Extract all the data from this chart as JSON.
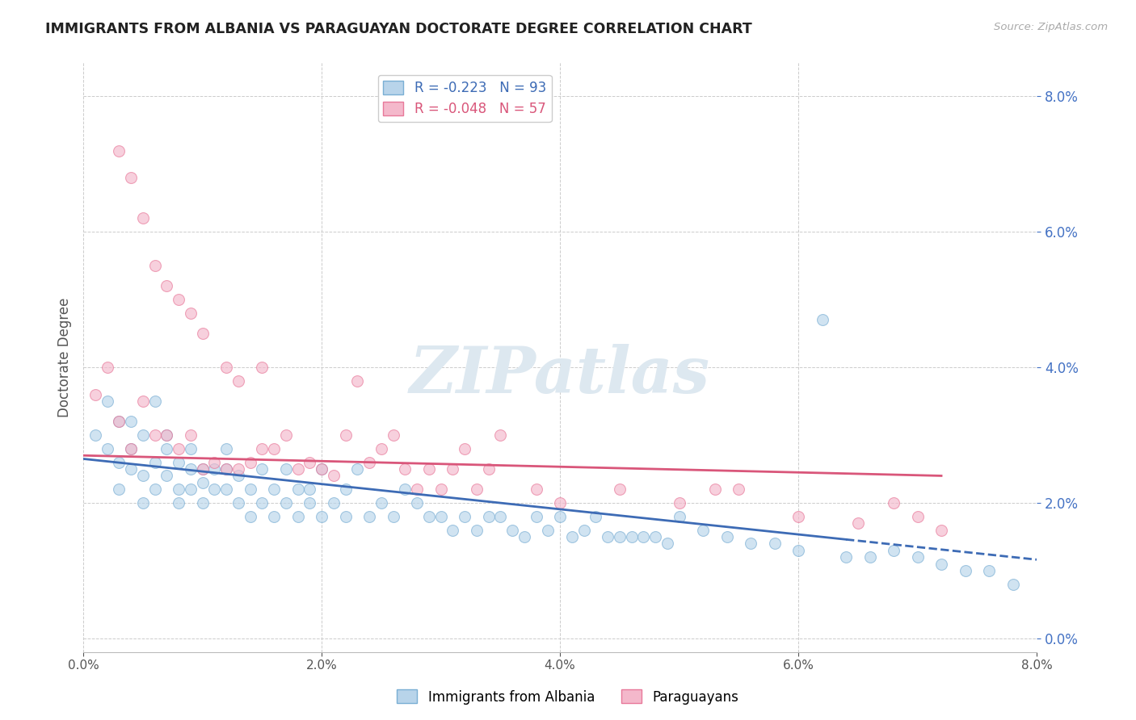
{
  "title": "IMMIGRANTS FROM ALBANIA VS PARAGUAYAN DOCTORATE DEGREE CORRELATION CHART",
  "source": "Source: ZipAtlas.com",
  "ylabel": "Doctorate Degree",
  "xlim": [
    0.0,
    0.08
  ],
  "ylim": [
    -0.002,
    0.085
  ],
  "albania_color": "#b8d4ea",
  "albania_edge": "#7aafd4",
  "paraguay_color": "#f4b8cb",
  "paraguay_edge": "#e8799a",
  "trend_albania_color": "#3d6bb5",
  "trend_paraguay_color": "#d9567a",
  "marker_size": 100,
  "marker_alpha": 0.65,
  "background_color": "#ffffff",
  "grid_color": "#cccccc",
  "watermark": "ZIPatlas",
  "legend_line1": "R = -0.223   N = 93",
  "legend_line2": "R = -0.048   N = 57",
  "legend_color1": "#3d6bb5",
  "legend_color2": "#d9567a",
  "albania_x": [
    0.001,
    0.002,
    0.002,
    0.003,
    0.003,
    0.003,
    0.004,
    0.004,
    0.004,
    0.005,
    0.005,
    0.005,
    0.006,
    0.006,
    0.006,
    0.007,
    0.007,
    0.007,
    0.008,
    0.008,
    0.008,
    0.009,
    0.009,
    0.009,
    0.01,
    0.01,
    0.01,
    0.011,
    0.011,
    0.012,
    0.012,
    0.012,
    0.013,
    0.013,
    0.014,
    0.014,
    0.015,
    0.015,
    0.016,
    0.016,
    0.017,
    0.017,
    0.018,
    0.018,
    0.019,
    0.019,
    0.02,
    0.02,
    0.021,
    0.022,
    0.022,
    0.023,
    0.024,
    0.025,
    0.026,
    0.027,
    0.028,
    0.029,
    0.03,
    0.031,
    0.032,
    0.033,
    0.034,
    0.035,
    0.036,
    0.037,
    0.038,
    0.039,
    0.04,
    0.041,
    0.042,
    0.043,
    0.044,
    0.045,
    0.046,
    0.047,
    0.048,
    0.049,
    0.05,
    0.052,
    0.054,
    0.056,
    0.058,
    0.06,
    0.062,
    0.064,
    0.066,
    0.068,
    0.07,
    0.072,
    0.074,
    0.076,
    0.078
  ],
  "albania_y": [
    0.03,
    0.028,
    0.035,
    0.026,
    0.032,
    0.022,
    0.028,
    0.025,
    0.032,
    0.024,
    0.03,
    0.02,
    0.026,
    0.022,
    0.035,
    0.028,
    0.024,
    0.03,
    0.022,
    0.026,
    0.02,
    0.025,
    0.022,
    0.028,
    0.025,
    0.02,
    0.023,
    0.025,
    0.022,
    0.025,
    0.022,
    0.028,
    0.02,
    0.024,
    0.022,
    0.018,
    0.025,
    0.02,
    0.022,
    0.018,
    0.025,
    0.02,
    0.022,
    0.018,
    0.02,
    0.022,
    0.025,
    0.018,
    0.02,
    0.022,
    0.018,
    0.025,
    0.018,
    0.02,
    0.018,
    0.022,
    0.02,
    0.018,
    0.018,
    0.016,
    0.018,
    0.016,
    0.018,
    0.018,
    0.016,
    0.015,
    0.018,
    0.016,
    0.018,
    0.015,
    0.016,
    0.018,
    0.015,
    0.015,
    0.015,
    0.015,
    0.015,
    0.014,
    0.018,
    0.016,
    0.015,
    0.014,
    0.014,
    0.013,
    0.047,
    0.012,
    0.012,
    0.013,
    0.012,
    0.011,
    0.01,
    0.01,
    0.008
  ],
  "paraguay_x": [
    0.001,
    0.002,
    0.003,
    0.003,
    0.004,
    0.004,
    0.005,
    0.005,
    0.006,
    0.006,
    0.007,
    0.007,
    0.008,
    0.008,
    0.009,
    0.009,
    0.01,
    0.01,
    0.011,
    0.012,
    0.012,
    0.013,
    0.013,
    0.014,
    0.015,
    0.015,
    0.016,
    0.017,
    0.018,
    0.019,
    0.02,
    0.021,
    0.022,
    0.023,
    0.024,
    0.025,
    0.026,
    0.027,
    0.028,
    0.029,
    0.03,
    0.031,
    0.032,
    0.033,
    0.034,
    0.035,
    0.038,
    0.04,
    0.045,
    0.05,
    0.053,
    0.055,
    0.06,
    0.065,
    0.068,
    0.07,
    0.072
  ],
  "paraguay_y": [
    0.036,
    0.04,
    0.032,
    0.072,
    0.028,
    0.068,
    0.035,
    0.062,
    0.03,
    0.055,
    0.03,
    0.052,
    0.028,
    0.05,
    0.03,
    0.048,
    0.025,
    0.045,
    0.026,
    0.025,
    0.04,
    0.025,
    0.038,
    0.026,
    0.028,
    0.04,
    0.028,
    0.03,
    0.025,
    0.026,
    0.025,
    0.024,
    0.03,
    0.038,
    0.026,
    0.028,
    0.03,
    0.025,
    0.022,
    0.025,
    0.022,
    0.025,
    0.028,
    0.022,
    0.025,
    0.03,
    0.022,
    0.02,
    0.022,
    0.02,
    0.022,
    0.022,
    0.018,
    0.017,
    0.02,
    0.018,
    0.016
  ],
  "trend_albania_x0": 0.0,
  "trend_albania_y0": 0.0265,
  "trend_albania_x1": 0.078,
  "trend_albania_y1": 0.012,
  "trend_albania_solid_end": 0.064,
  "trend_albania_dashed_start": 0.064,
  "trend_albania_dashed_end": 0.08,
  "trend_paraguay_x0": 0.0,
  "trend_paraguay_y0": 0.027,
  "trend_paraguay_x1": 0.072,
  "trend_paraguay_y1": 0.024
}
